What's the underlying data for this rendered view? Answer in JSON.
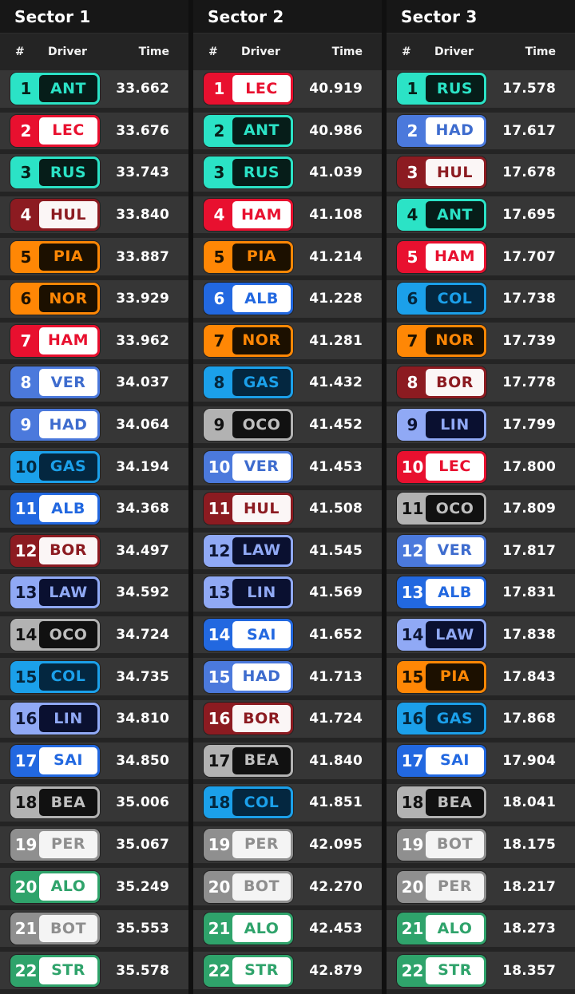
{
  "colors": {
    "page_bg": "#101010",
    "title_bg": "#171717",
    "header_bg": "#242424",
    "row_bg": "#363636",
    "row_separator": "#242424",
    "time_text": "#FFFFFF"
  },
  "teams": {
    "mercedes": {
      "accent": "#2BE3C6",
      "num_text": "#062019",
      "code_bg": "#061D19",
      "code_text": "#2BE3C6"
    },
    "ferrari": {
      "accent": "#E8102F",
      "num_text": "#FFFFFF",
      "code_bg": "#FFFFFF",
      "code_text": "#E8102F"
    },
    "mclaren": {
      "accent": "#FF8705",
      "num_text": "#201200",
      "code_bg": "#1C1000",
      "code_text": "#FF8705"
    },
    "redbull": {
      "accent": "#4B79DC",
      "num_text": "#FFFFFF",
      "code_bg": "#FFFFFF",
      "code_text": "#3E6CCE"
    },
    "racingbulls": {
      "accent": "#90A9F5",
      "num_text": "#0D1533",
      "code_bg": "#0A1030",
      "code_text": "#90A9F5"
    },
    "alpine": {
      "accent": "#1BA0EA",
      "num_text": "#04283F",
      "code_bg": "#042740",
      "code_text": "#1BA0EA"
    },
    "williams": {
      "accent": "#2268E0",
      "num_text": "#FFFFFF",
      "code_bg": "#FFFFFF",
      "code_text": "#2268E0"
    },
    "audi": {
      "accent": "#8C1B21",
      "num_text": "#FFFFFF",
      "code_bg": "#FBF6F6",
      "code_text": "#8C1B21"
    },
    "haas": {
      "accent": "#B2B2B2",
      "num_text": "#111111",
      "code_bg": "#111111",
      "code_text": "#BFBFBF"
    },
    "cadillac": {
      "accent": "#8F8F8F",
      "num_text": "#FFFFFF",
      "code_bg": "#F4F4F4",
      "code_text": "#8E8E8E"
    },
    "aston": {
      "accent": "#2FA36B",
      "num_text": "#FFFFFF",
      "code_bg": "#FFFFFF",
      "code_text": "#2FA36B"
    }
  },
  "board": {
    "columns": [
      {
        "title": "Sector 1",
        "headers": {
          "pos": "#",
          "driver": "Driver",
          "time": "Time"
        },
        "rows": [
          {
            "pos": "1",
            "code": "ANT",
            "team": "mercedes",
            "time": "33.662"
          },
          {
            "pos": "2",
            "code": "LEC",
            "team": "ferrari",
            "time": "33.676"
          },
          {
            "pos": "3",
            "code": "RUS",
            "team": "mercedes",
            "time": "33.743"
          },
          {
            "pos": "4",
            "code": "HUL",
            "team": "audi",
            "time": "33.840"
          },
          {
            "pos": "5",
            "code": "PIA",
            "team": "mclaren",
            "time": "33.887"
          },
          {
            "pos": "6",
            "code": "NOR",
            "team": "mclaren",
            "time": "33.929"
          },
          {
            "pos": "7",
            "code": "HAM",
            "team": "ferrari",
            "time": "33.962"
          },
          {
            "pos": "8",
            "code": "VER",
            "team": "redbull",
            "time": "34.037"
          },
          {
            "pos": "9",
            "code": "HAD",
            "team": "redbull",
            "time": "34.064"
          },
          {
            "pos": "10",
            "code": "GAS",
            "team": "alpine",
            "time": "34.194"
          },
          {
            "pos": "11",
            "code": "ALB",
            "team": "williams",
            "time": "34.368"
          },
          {
            "pos": "12",
            "code": "BOR",
            "team": "audi",
            "time": "34.497"
          },
          {
            "pos": "13",
            "code": "LAW",
            "team": "racingbulls",
            "time": "34.592"
          },
          {
            "pos": "14",
            "code": "OCO",
            "team": "haas",
            "time": "34.724"
          },
          {
            "pos": "15",
            "code": "COL",
            "team": "alpine",
            "time": "34.735"
          },
          {
            "pos": "16",
            "code": "LIN",
            "team": "racingbulls",
            "time": "34.810"
          },
          {
            "pos": "17",
            "code": "SAI",
            "team": "williams",
            "time": "34.850"
          },
          {
            "pos": "18",
            "code": "BEA",
            "team": "haas",
            "time": "35.006"
          },
          {
            "pos": "19",
            "code": "PER",
            "team": "cadillac",
            "time": "35.067"
          },
          {
            "pos": "20",
            "code": "ALO",
            "team": "aston",
            "time": "35.249"
          },
          {
            "pos": "21",
            "code": "BOT",
            "team": "cadillac",
            "time": "35.553"
          },
          {
            "pos": "22",
            "code": "STR",
            "team": "aston",
            "time": "35.578"
          }
        ]
      },
      {
        "title": "Sector 2",
        "headers": {
          "pos": "#",
          "driver": "Driver",
          "time": "Time"
        },
        "rows": [
          {
            "pos": "1",
            "code": "LEC",
            "team": "ferrari",
            "time": "40.919"
          },
          {
            "pos": "2",
            "code": "ANT",
            "team": "mercedes",
            "time": "40.986"
          },
          {
            "pos": "3",
            "code": "RUS",
            "team": "mercedes",
            "time": "41.039"
          },
          {
            "pos": "4",
            "code": "HAM",
            "team": "ferrari",
            "time": "41.108"
          },
          {
            "pos": "5",
            "code": "PIA",
            "team": "mclaren",
            "time": "41.214"
          },
          {
            "pos": "6",
            "code": "ALB",
            "team": "williams",
            "time": "41.228"
          },
          {
            "pos": "7",
            "code": "NOR",
            "team": "mclaren",
            "time": "41.281"
          },
          {
            "pos": "8",
            "code": "GAS",
            "team": "alpine",
            "time": "41.432"
          },
          {
            "pos": "9",
            "code": "OCO",
            "team": "haas",
            "time": "41.452"
          },
          {
            "pos": "10",
            "code": "VER",
            "team": "redbull",
            "time": "41.453"
          },
          {
            "pos": "11",
            "code": "HUL",
            "team": "audi",
            "time": "41.508"
          },
          {
            "pos": "12",
            "code": "LAW",
            "team": "racingbulls",
            "time": "41.545"
          },
          {
            "pos": "13",
            "code": "LIN",
            "team": "racingbulls",
            "time": "41.569"
          },
          {
            "pos": "14",
            "code": "SAI",
            "team": "williams",
            "time": "41.652"
          },
          {
            "pos": "15",
            "code": "HAD",
            "team": "redbull",
            "time": "41.713"
          },
          {
            "pos": "16",
            "code": "BOR",
            "team": "audi",
            "time": "41.724"
          },
          {
            "pos": "17",
            "code": "BEA",
            "team": "haas",
            "time": "41.840"
          },
          {
            "pos": "18",
            "code": "COL",
            "team": "alpine",
            "time": "41.851"
          },
          {
            "pos": "19",
            "code": "PER",
            "team": "cadillac",
            "time": "42.095"
          },
          {
            "pos": "20",
            "code": "BOT",
            "team": "cadillac",
            "time": "42.270"
          },
          {
            "pos": "21",
            "code": "ALO",
            "team": "aston",
            "time": "42.453"
          },
          {
            "pos": "22",
            "code": "STR",
            "team": "aston",
            "time": "42.879"
          }
        ]
      },
      {
        "title": "Sector 3",
        "headers": {
          "pos": "#",
          "driver": "Driver",
          "time": "Time"
        },
        "rows": [
          {
            "pos": "1",
            "code": "RUS",
            "team": "mercedes",
            "time": "17.578"
          },
          {
            "pos": "2",
            "code": "HAD",
            "team": "redbull",
            "time": "17.617"
          },
          {
            "pos": "3",
            "code": "HUL",
            "team": "audi",
            "time": "17.678"
          },
          {
            "pos": "4",
            "code": "ANT",
            "team": "mercedes",
            "time": "17.695"
          },
          {
            "pos": "5",
            "code": "HAM",
            "team": "ferrari",
            "time": "17.707"
          },
          {
            "pos": "6",
            "code": "COL",
            "team": "alpine",
            "time": "17.738"
          },
          {
            "pos": "7",
            "code": "NOR",
            "team": "mclaren",
            "time": "17.739"
          },
          {
            "pos": "8",
            "code": "BOR",
            "team": "audi",
            "time": "17.778"
          },
          {
            "pos": "9",
            "code": "LIN",
            "team": "racingbulls",
            "time": "17.799"
          },
          {
            "pos": "10",
            "code": "LEC",
            "team": "ferrari",
            "time": "17.800"
          },
          {
            "pos": "11",
            "code": "OCO",
            "team": "haas",
            "time": "17.809"
          },
          {
            "pos": "12",
            "code": "VER",
            "team": "redbull",
            "time": "17.817"
          },
          {
            "pos": "13",
            "code": "ALB",
            "team": "williams",
            "time": "17.831"
          },
          {
            "pos": "14",
            "code": "LAW",
            "team": "racingbulls",
            "time": "17.838"
          },
          {
            "pos": "15",
            "code": "PIA",
            "team": "mclaren",
            "time": "17.843"
          },
          {
            "pos": "16",
            "code": "GAS",
            "team": "alpine",
            "time": "17.868"
          },
          {
            "pos": "17",
            "code": "SAI",
            "team": "williams",
            "time": "17.904"
          },
          {
            "pos": "18",
            "code": "BEA",
            "team": "haas",
            "time": "18.041"
          },
          {
            "pos": "19",
            "code": "BOT",
            "team": "cadillac",
            "time": "18.175"
          },
          {
            "pos": "20",
            "code": "PER",
            "team": "cadillac",
            "time": "18.217"
          },
          {
            "pos": "21",
            "code": "ALO",
            "team": "aston",
            "time": "18.273"
          },
          {
            "pos": "22",
            "code": "STR",
            "team": "aston",
            "time": "18.357"
          }
        ]
      }
    ]
  }
}
